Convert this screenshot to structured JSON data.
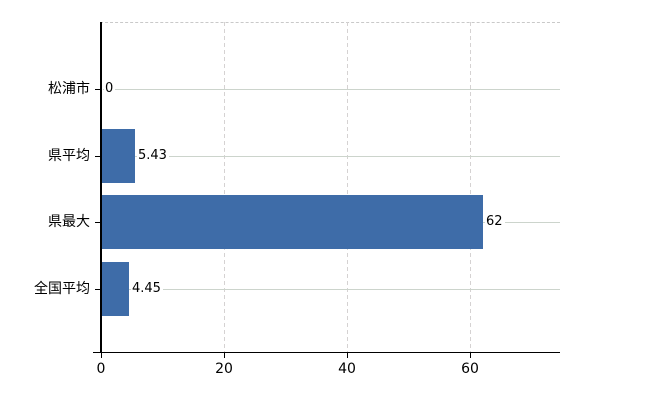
{
  "chart_data": {
    "type": "bar",
    "orientation": "horizontal",
    "title": "",
    "xlabel": "",
    "ylabel": "",
    "categories": [
      "松浦市",
      "県平均",
      "県最大",
      "全国平均"
    ],
    "values": [
      0,
      5.43,
      62,
      4.45
    ],
    "value_labels": [
      "0",
      "5.43",
      "62",
      "4.45"
    ],
    "x_ticks": [
      0,
      20,
      40,
      60
    ],
    "x_tick_labels": [
      "0",
      "20",
      "40",
      "60"
    ],
    "xlim": [
      0,
      74.6
    ],
    "grid": true,
    "legend": false,
    "colors": {
      "bar": "#3e6ca8",
      "axis": "#000000",
      "text": "#000000",
      "h_gridline": "#ccd4cc",
      "v_gridline": "#d5d2d2",
      "top_border": "#c9c9c9",
      "background": "#ffffff"
    }
  }
}
